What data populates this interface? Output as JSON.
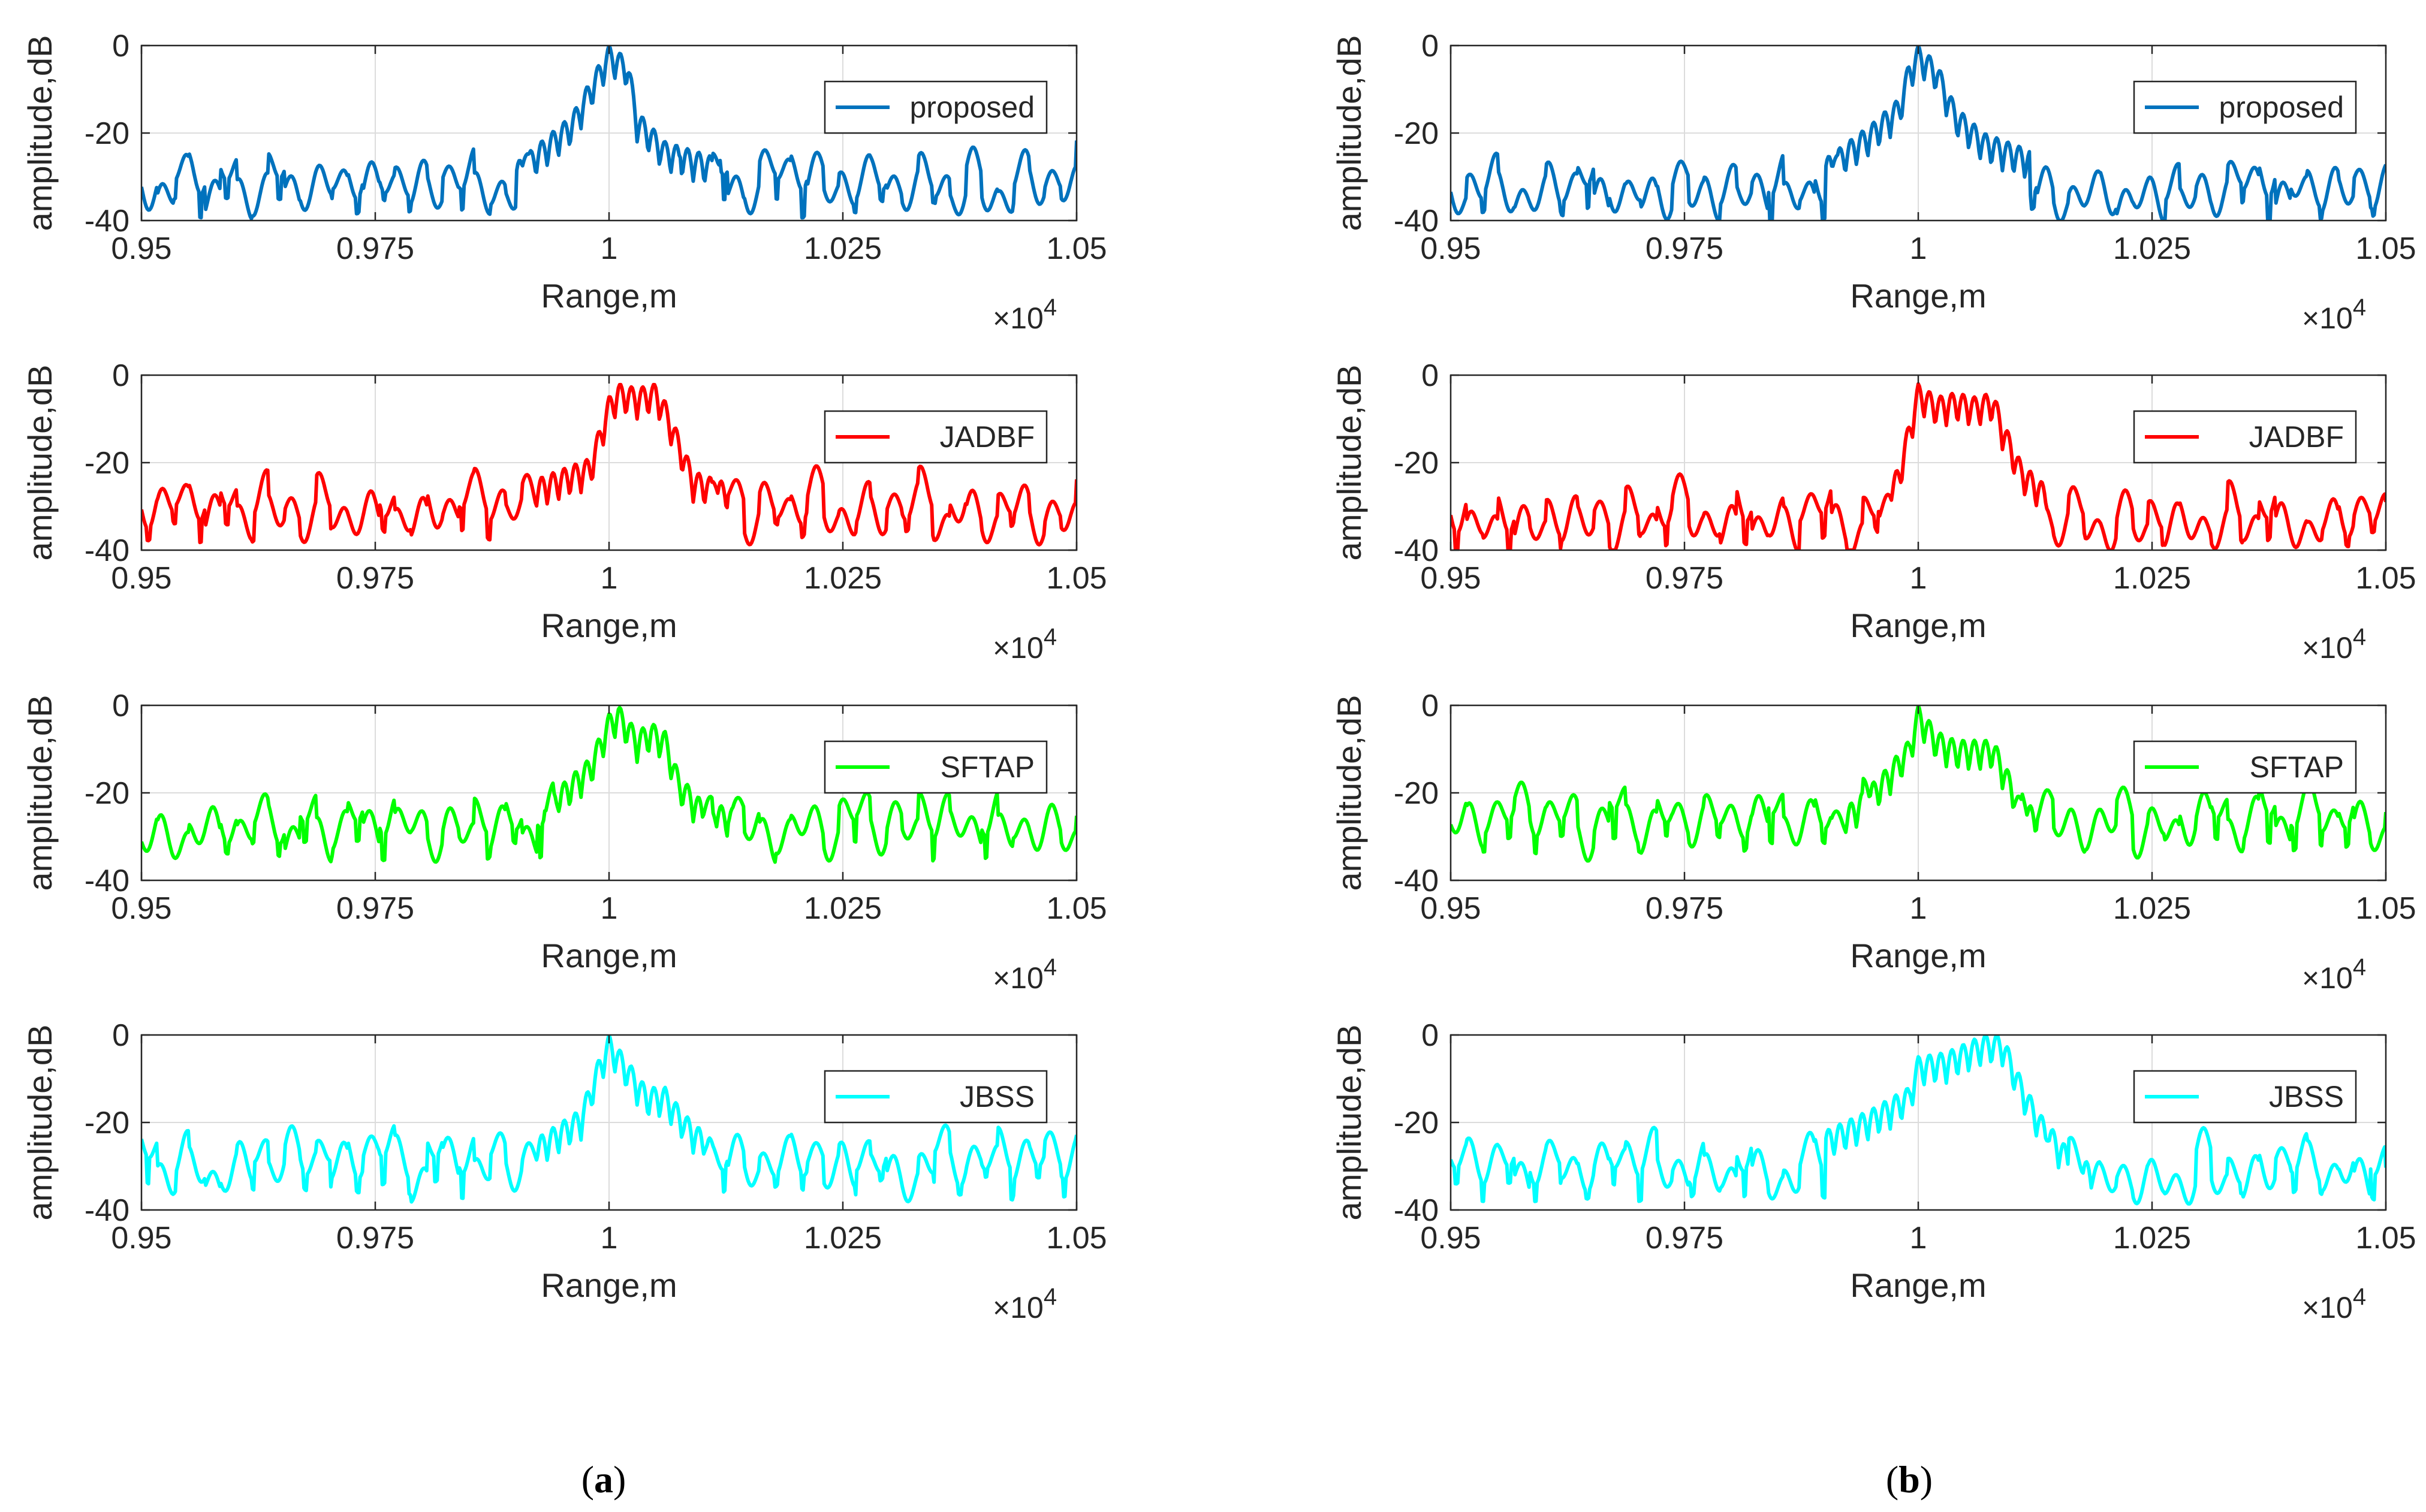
{
  "figure": {
    "panel_labels": [
      {
        "open": "(",
        "letter": "a",
        "close": ")"
      },
      {
        "open": "(",
        "letter": "b",
        "close": ")"
      }
    ],
    "x_multiplier": {
      "base": "×10",
      "exp": "4"
    }
  },
  "chart_data": [
    {
      "type": "line",
      "column": "a",
      "series_name": "proposed",
      "color": "#0072BD",
      "xlabel": "Range,m",
      "ylabel": "amplitude,dB",
      "xlim": [
        0.95,
        1.05
      ],
      "ylim": [
        -40,
        0
      ],
      "xticks": [
        0.95,
        0.975,
        1,
        1.025,
        1.05
      ],
      "xtick_labels": [
        "0.95",
        "0.975",
        "1",
        "1.025",
        "1.05"
      ],
      "yticks": [
        0,
        -20,
        -40
      ],
      "ytick_labels": [
        "0",
        "-20",
        "-40"
      ],
      "grid": true,
      "legend": "top-right",
      "seed": 11,
      "baseline": -31,
      "jitter": 6,
      "lobe_period": 0.0028,
      "mainlobe": [
        [
          0.99,
          -27
        ],
        [
          0.996,
          -16
        ],
        [
          0.999,
          -4
        ],
        [
          1.0,
          0
        ],
        [
          1.002,
          -3
        ],
        [
          1.003,
          -15
        ],
        [
          1.006,
          -22
        ],
        [
          1.012,
          -26
        ]
      ]
    },
    {
      "type": "line",
      "column": "a",
      "series_name": "JADBF",
      "color": "#FF0000",
      "xlabel": "Range,m",
      "ylabel": "amplitude,dB",
      "xlim": [
        0.95,
        1.05
      ],
      "ylim": [
        -40,
        0
      ],
      "xticks": [
        0.95,
        0.975,
        1,
        1.025,
        1.05
      ],
      "xtick_labels": [
        "0.95",
        "0.975",
        "1",
        "1.025",
        "1.05"
      ],
      "yticks": [
        0,
        -20,
        -40
      ],
      "ytick_labels": [
        "0",
        "-20",
        "-40"
      ],
      "grid": true,
      "legend": "top-right",
      "seed": 23,
      "baseline": -30,
      "jitter": 6,
      "lobe_period": 0.0028,
      "mainlobe": [
        [
          0.992,
          -24
        ],
        [
          0.998,
          -19
        ],
        [
          1.0,
          -5
        ],
        [
          1.001,
          -2
        ],
        [
          1.003,
          -3
        ],
        [
          1.005,
          -2
        ],
        [
          1.006,
          -6
        ],
        [
          1.0075,
          -14
        ],
        [
          1.009,
          -22
        ],
        [
          1.013,
          -25
        ]
      ]
    },
    {
      "type": "line",
      "column": "a",
      "series_name": "SFTAP",
      "color": "#00FF00",
      "xlabel": "Range,m",
      "ylabel": "amplitude,dB",
      "xlim": [
        0.95,
        1.05
      ],
      "ylim": [
        -40,
        0
      ],
      "xticks": [
        0.95,
        0.975,
        1,
        1.025,
        1.05
      ],
      "xtick_labels": [
        "0.95",
        "0.975",
        "1",
        "1.025",
        "1.05"
      ],
      "yticks": [
        0,
        -20,
        -40
      ],
      "ytick_labels": [
        "0",
        "-20",
        "-40"
      ],
      "grid": true,
      "legend": "top-right",
      "seed": 37,
      "baseline": -27,
      "jitter": 6,
      "lobe_period": 0.0028,
      "mainlobe": [
        [
          0.993,
          -22
        ],
        [
          0.998,
          -12
        ],
        [
          1.0,
          -2
        ],
        [
          1.001,
          0
        ],
        [
          1.003,
          -6
        ],
        [
          1.0045,
          -4
        ],
        [
          1.006,
          -6
        ],
        [
          1.0075,
          -16
        ],
        [
          1.01,
          -22
        ],
        [
          1.014,
          -24
        ]
      ]
    },
    {
      "type": "line",
      "column": "a",
      "series_name": "JBSS",
      "color": "#00FFFF",
      "xlabel": "Range,m",
      "ylabel": "amplitude,dB",
      "xlim": [
        0.95,
        1.05
      ],
      "ylim": [
        -40,
        0
      ],
      "xticks": [
        0.95,
        0.975,
        1,
        1.025,
        1.05
      ],
      "xtick_labels": [
        "0.95",
        "0.975",
        "1",
        "1.025",
        "1.05"
      ],
      "yticks": [
        0,
        -20,
        -40
      ],
      "ytick_labels": [
        "0",
        "-20",
        "-40"
      ],
      "grid": true,
      "legend": "top-right",
      "seed": 41,
      "baseline": -29,
      "jitter": 6,
      "lobe_period": 0.0028,
      "mainlobe": [
        [
          0.992,
          -24
        ],
        [
          0.997,
          -17
        ],
        [
          0.999,
          -5
        ],
        [
          1.0,
          0
        ],
        [
          1.002,
          -6
        ],
        [
          1.004,
          -12
        ],
        [
          1.006,
          -12
        ],
        [
          1.008,
          -18
        ],
        [
          1.011,
          -24
        ]
      ]
    },
    {
      "type": "line",
      "column": "b",
      "series_name": "proposed",
      "color": "#0072BD",
      "xlabel": "Range,m",
      "ylabel": "amplitude,dB",
      "xlim": [
        0.95,
        1.05
      ],
      "ylim": [
        -40,
        0
      ],
      "xticks": [
        0.95,
        0.975,
        1,
        1.025,
        1.05
      ],
      "xtick_labels": [
        "0.95",
        "0.975",
        "1",
        "1.025",
        "1.05"
      ],
      "yticks": [
        0,
        -20,
        -40
      ],
      "ytick_labels": [
        "0",
        "-20",
        "-40"
      ],
      "grid": true,
      "legend": "top-right",
      "seed": 53,
      "baseline": -32,
      "jitter": 6,
      "lobe_period": 0.0028,
      "mainlobe": [
        [
          0.99,
          -26
        ],
        [
          0.995,
          -18
        ],
        [
          0.998,
          -12
        ],
        [
          0.999,
          -4
        ],
        [
          1.0,
          0
        ],
        [
          1.002,
          -4
        ],
        [
          1.004,
          -14
        ],
        [
          1.007,
          -20
        ],
        [
          1.012,
          -24
        ]
      ]
    },
    {
      "type": "line",
      "column": "b",
      "series_name": "JADBF",
      "color": "#FF0000",
      "xlabel": "Range,m",
      "ylabel": "amplitude,dB",
      "xlim": [
        0.95,
        1.05
      ],
      "ylim": [
        -40,
        0
      ],
      "xticks": [
        0.95,
        0.975,
        1,
        1.025,
        1.05
      ],
      "xtick_labels": [
        "0.95",
        "0.975",
        "1",
        "1.025",
        "1.05"
      ],
      "yticks": [
        0,
        -20,
        -40
      ],
      "ytick_labels": [
        "0",
        "-20",
        "-40"
      ],
      "grid": true,
      "legend": "top-right",
      "seed": 67,
      "baseline": -32,
      "jitter": 6,
      "lobe_period": 0.0028,
      "mainlobe": [
        [
          0.995,
          -36
        ],
        [
          0.998,
          -20
        ],
        [
          1.0,
          -2
        ],
        [
          1.002,
          -5
        ],
        [
          1.004,
          -4
        ],
        [
          1.006,
          -5
        ],
        [
          1.008,
          -4
        ],
        [
          1.009,
          -10
        ],
        [
          1.011,
          -20
        ],
        [
          1.014,
          -26
        ]
      ]
    },
    {
      "type": "line",
      "column": "b",
      "series_name": "SFTAP",
      "color": "#00FF00",
      "xlabel": "Range,m",
      "ylabel": "amplitude,dB",
      "xlim": [
        0.95,
        1.05
      ],
      "ylim": [
        -40,
        0
      ],
      "xticks": [
        0.95,
        0.975,
        1,
        1.025,
        1.05
      ],
      "xtick_labels": [
        "0.95",
        "0.975",
        "1",
        "1.025",
        "1.05"
      ],
      "yticks": [
        0,
        -20,
        -40
      ],
      "ytick_labels": [
        "0",
        "-20",
        "-40"
      ],
      "grid": true,
      "legend": "top-right",
      "seed": 71,
      "baseline": -26,
      "jitter": 6,
      "lobe_period": 0.0028,
      "mainlobe": [
        [
          0.992,
          -24
        ],
        [
          0.996,
          -16
        ],
        [
          0.999,
          -8
        ],
        [
          1.0,
          0
        ],
        [
          1.002,
          -6
        ],
        [
          1.004,
          -8
        ],
        [
          1.006,
          -8
        ],
        [
          1.008,
          -8
        ],
        [
          1.009,
          -12
        ],
        [
          1.011,
          -22
        ],
        [
          1.014,
          -25
        ]
      ]
    },
    {
      "type": "line",
      "column": "b",
      "series_name": "JBSS",
      "color": "#00FFFF",
      "xlabel": "Range,m",
      "ylabel": "amplitude,dB",
      "xlim": [
        0.95,
        1.05
      ],
      "ylim": [
        -40,
        0
      ],
      "xticks": [
        0.95,
        0.975,
        1,
        1.025,
        1.05
      ],
      "xtick_labels": [
        "0.95",
        "0.975",
        "1",
        "1.025",
        "1.05"
      ],
      "yticks": [
        0,
        -20,
        -40
      ],
      "ytick_labels": [
        "0",
        "-20",
        "-40"
      ],
      "grid": true,
      "legend": "top-right",
      "seed": 83,
      "baseline": -30,
      "jitter": 6,
      "lobe_period": 0.0028,
      "mainlobe": [
        [
          0.99,
          -22
        ],
        [
          0.995,
          -17
        ],
        [
          0.999,
          -12
        ],
        [
          1.0,
          -5
        ],
        [
          1.003,
          -4
        ],
        [
          1.005,
          -2
        ],
        [
          1.007,
          0
        ],
        [
          1.009,
          0
        ],
        [
          1.011,
          -10
        ],
        [
          1.013,
          -18
        ],
        [
          1.016,
          -26
        ],
        [
          1.02,
          -32
        ]
      ]
    }
  ]
}
